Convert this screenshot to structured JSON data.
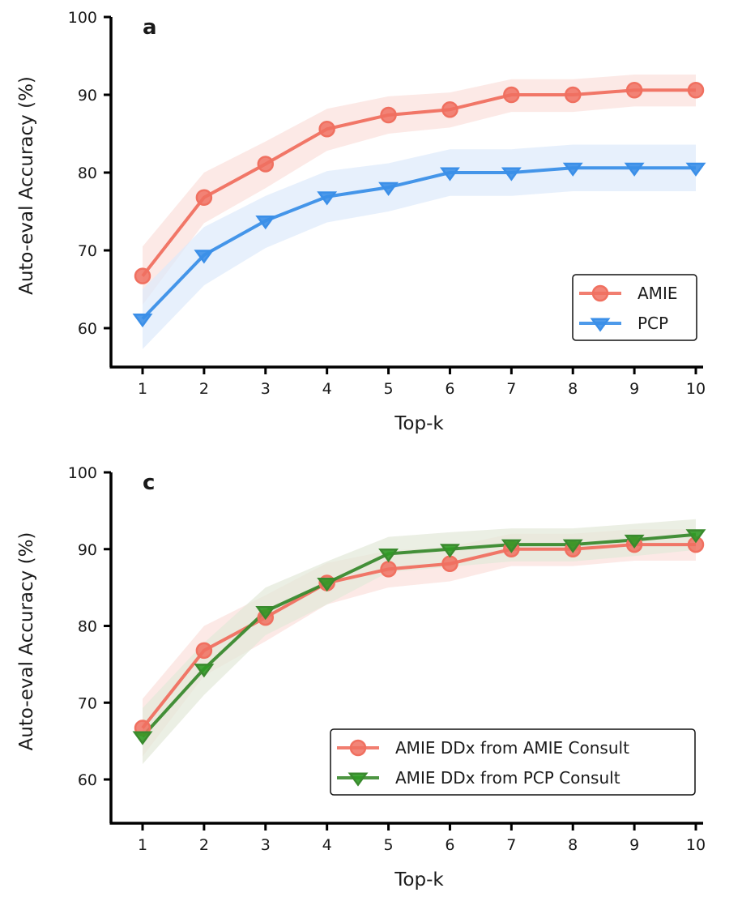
{
  "chart_data": [
    {
      "type": "line",
      "panel_label": "a",
      "title": "",
      "xlabel": "Top-k",
      "ylabel": "Auto-eval Accuracy (%)",
      "x": [
        1,
        2,
        3,
        4,
        5,
        6,
        7,
        8,
        9,
        10
      ],
      "xticks": [
        "1",
        "2",
        "3",
        "4",
        "5",
        "6",
        "7",
        "8",
        "9",
        "10"
      ],
      "yticks": [
        "60",
        "70",
        "80",
        "90",
        "100"
      ],
      "ylim": [
        55,
        100
      ],
      "grid": false,
      "legend_position": "lower-right",
      "series": [
        {
          "name": "AMIE",
          "color": "#f07060",
          "band_color": "#fbe0db",
          "marker": "circle",
          "values": [
            66.7,
            76.8,
            81.1,
            85.6,
            87.4,
            88.1,
            90.0,
            90.0,
            90.6,
            90.6
          ],
          "ci_lower": [
            63.0,
            73.5,
            78.0,
            82.8,
            85.0,
            85.8,
            87.8,
            87.8,
            88.5,
            88.5
          ],
          "ci_upper": [
            70.5,
            80.0,
            84.0,
            88.2,
            89.8,
            90.3,
            92.0,
            92.0,
            92.6,
            92.6
          ]
        },
        {
          "name": "PCP",
          "color": "#3b8fe8",
          "band_color": "#dde9fb",
          "marker": "triangle-down",
          "values": [
            61.2,
            69.4,
            73.8,
            76.9,
            78.1,
            80.0,
            80.0,
            80.6,
            80.6,
            80.6
          ],
          "ci_lower": [
            57.3,
            65.5,
            70.3,
            73.6,
            75.0,
            77.0,
            77.0,
            77.6,
            77.6,
            77.6
          ],
          "ci_upper": [
            65.0,
            73.0,
            77.0,
            80.2,
            81.2,
            83.0,
            83.0,
            83.6,
            83.6,
            83.6
          ]
        }
      ]
    },
    {
      "type": "line",
      "panel_label": "c",
      "title": "",
      "xlabel": "Top-k",
      "ylabel": "Auto-eval Accuracy (%)",
      "x": [
        1,
        2,
        3,
        4,
        5,
        6,
        7,
        8,
        9,
        10
      ],
      "xticks": [
        "1",
        "2",
        "3",
        "4",
        "5",
        "6",
        "7",
        "8",
        "9",
        "10"
      ],
      "yticks": [
        "60",
        "70",
        "80",
        "90",
        "100"
      ],
      "ylim": [
        55,
        100
      ],
      "grid": false,
      "legend_position": "lower-right",
      "series": [
        {
          "name": "AMIE DDx from AMIE Consult",
          "color": "#f07060",
          "band_color": "#fbe0db",
          "marker": "circle",
          "values": [
            66.7,
            76.8,
            81.1,
            85.6,
            87.4,
            88.1,
            90.0,
            90.0,
            90.6,
            90.6
          ],
          "ci_lower": [
            63.0,
            73.5,
            78.0,
            82.8,
            85.0,
            85.8,
            87.8,
            87.8,
            88.5,
            88.5
          ],
          "ci_upper": [
            70.5,
            80.0,
            84.0,
            88.2,
            89.8,
            90.3,
            92.0,
            92.0,
            92.6,
            92.6
          ]
        },
        {
          "name": "AMIE DDx from PCP Consult",
          "color": "#3a8a2e",
          "marker_color": "#2f9a24",
          "band_color": "#e2e8d8",
          "marker": "triangle-down",
          "values": [
            65.6,
            74.4,
            81.9,
            85.6,
            89.4,
            90.0,
            90.6,
            90.6,
            91.2,
            91.9
          ],
          "ci_lower": [
            62.0,
            71.0,
            78.8,
            82.8,
            87.0,
            87.7,
            88.4,
            88.4,
            89.1,
            89.9
          ],
          "ci_upper": [
            69.3,
            77.8,
            85.0,
            88.4,
            91.6,
            92.2,
            92.7,
            92.7,
            93.3,
            93.9
          ]
        }
      ]
    }
  ]
}
